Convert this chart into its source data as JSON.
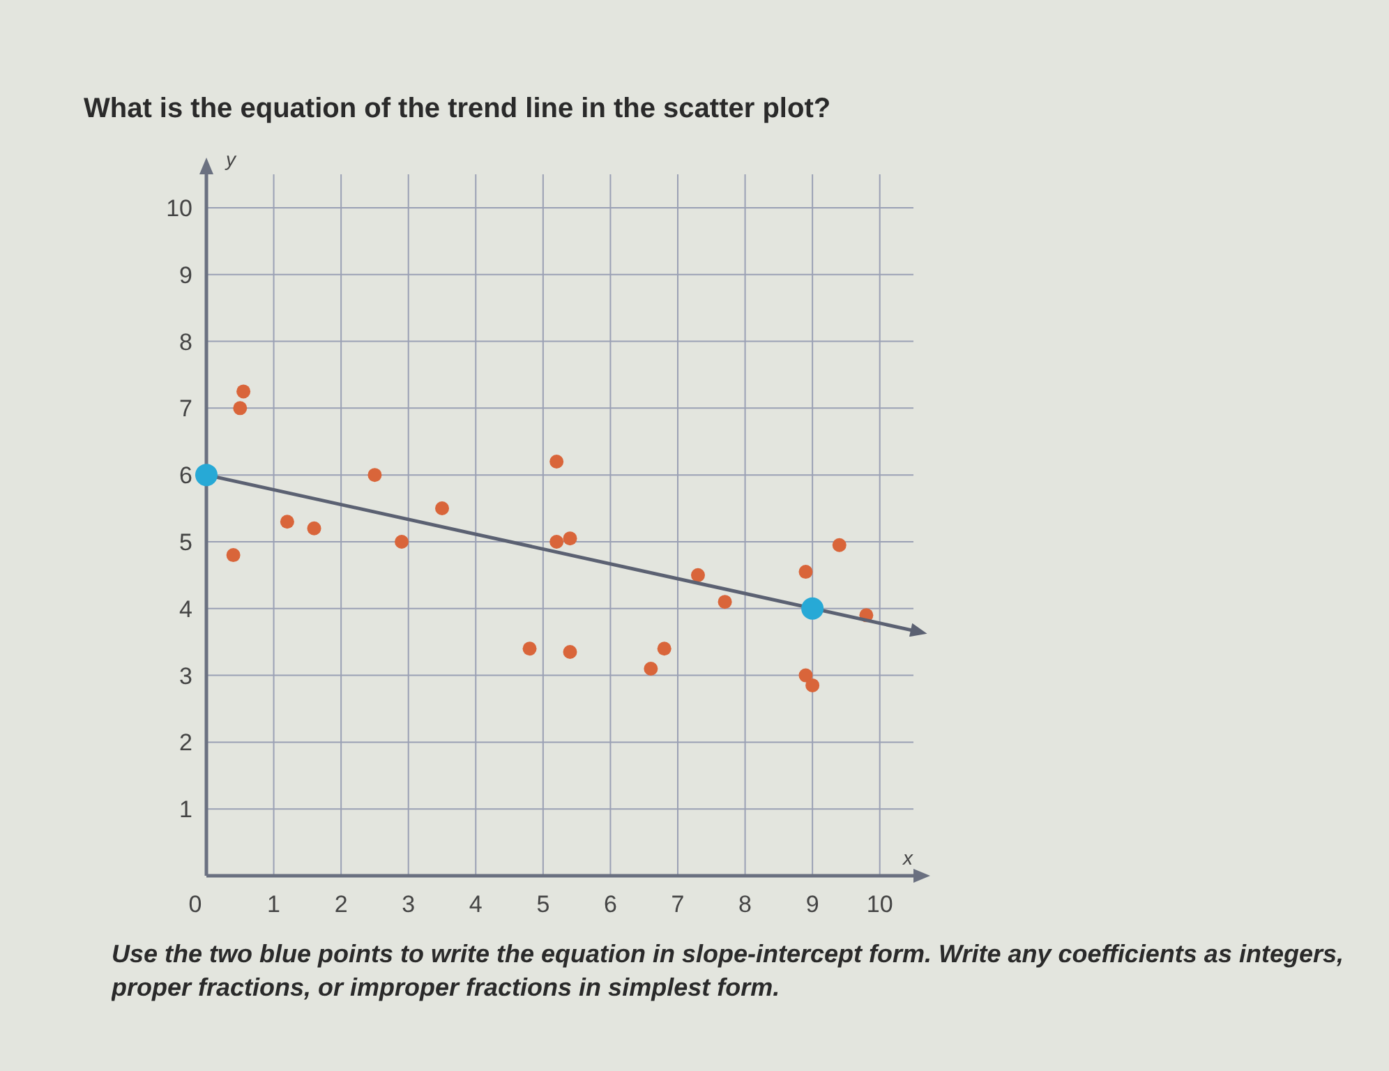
{
  "chart_data": {
    "type": "scatter",
    "title": "What is the equation of the trend line in the scatter plot?",
    "xlabel": "x",
    "ylabel": "y",
    "xlim": [
      0,
      10.5
    ],
    "ylim": [
      0,
      10.5
    ],
    "xticks": [
      0,
      1,
      2,
      3,
      4,
      5,
      6,
      7,
      8,
      9,
      10
    ],
    "yticks": [
      1,
      2,
      3,
      4,
      5,
      6,
      7,
      8,
      9,
      10
    ],
    "grid": true,
    "marker": "circle",
    "series": [
      {
        "color": "#d9653a",
        "x": [
          0.55,
          0.5,
          0.4,
          1.2,
          1.6,
          2.5,
          2.9,
          3.5,
          5.2,
          5.2,
          5.4,
          4.8,
          5.4,
          6.6,
          6.8,
          7.3,
          7.7,
          8.9,
          9.4,
          8.9,
          9.0,
          9.8
        ],
        "values": [
          7.25,
          7.0,
          4.8,
          5.3,
          5.2,
          6.0,
          5.0,
          5.5,
          6.2,
          5.0,
          5.05,
          3.4,
          3.35,
          3.1,
          3.4,
          4.5,
          4.1,
          4.55,
          4.95,
          3.0,
          2.85,
          3.9
        ]
      },
      {
        "type": "line",
        "color": "#5b6172",
        "x": [
          0,
          10.5
        ],
        "values": [
          6,
          3.67
        ],
        "line_style": "solid",
        "marker": "none"
      },
      {
        "type": "scatter",
        "color": "#27a9d6",
        "x": [
          0,
          9
        ],
        "values": [
          6,
          4
        ]
      }
    ],
    "annotations": [
      "Use the two blue points to write the equation in slope-intercept form. Write any coefficients as integers, proper fractions, or improper fractions in simplest form."
    ]
  }
}
